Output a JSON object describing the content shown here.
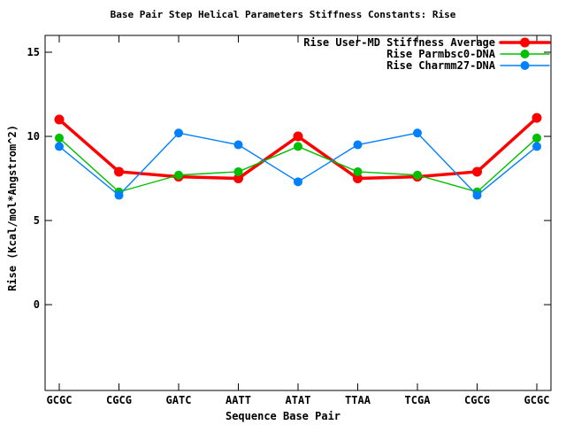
{
  "chart_data": {
    "type": "line",
    "title": "Base Pair Step Helical Parameters Stiffness Constants: Rise",
    "xlabel": "Sequence Base Pair",
    "ylabel": "Rise (Kcal/mol*Angstrom^2)",
    "categories": [
      "GCGC",
      "CGCG",
      "GATC",
      "AATT",
      "ATAT",
      "TTAA",
      "TCGA",
      "CGCG",
      "GCGC"
    ],
    "series": [
      {
        "name": "Rise User-MD Stiffness Average",
        "color": "#ff0000",
        "line_width": 3.5,
        "marker_radius": 5.5,
        "values": [
          11.0,
          7.9,
          7.6,
          7.5,
          10.0,
          7.5,
          7.6,
          7.9,
          11.1
        ]
      },
      {
        "name": "Rise Parmbsc0-DNA",
        "color": "#00c000",
        "line_width": 1.4,
        "marker_radius": 5,
        "values": [
          9.9,
          6.7,
          7.7,
          7.9,
          9.4,
          7.9,
          7.7,
          6.7,
          9.9
        ]
      },
      {
        "name": "Rise Charmm27-DNA",
        "color": "#0080ff",
        "line_width": 1.4,
        "marker_radius": 5,
        "values": [
          9.4,
          6.5,
          10.2,
          9.5,
          7.3,
          9.5,
          10.2,
          6.5,
          9.4
        ]
      }
    ],
    "yticks": [
      0,
      5,
      10,
      15
    ],
    "ylim": [
      -5.1,
      16.0
    ],
    "grid": false,
    "legend_position": "top-right-inside",
    "axis_color": "#000000",
    "background_color": "#ffffff"
  }
}
